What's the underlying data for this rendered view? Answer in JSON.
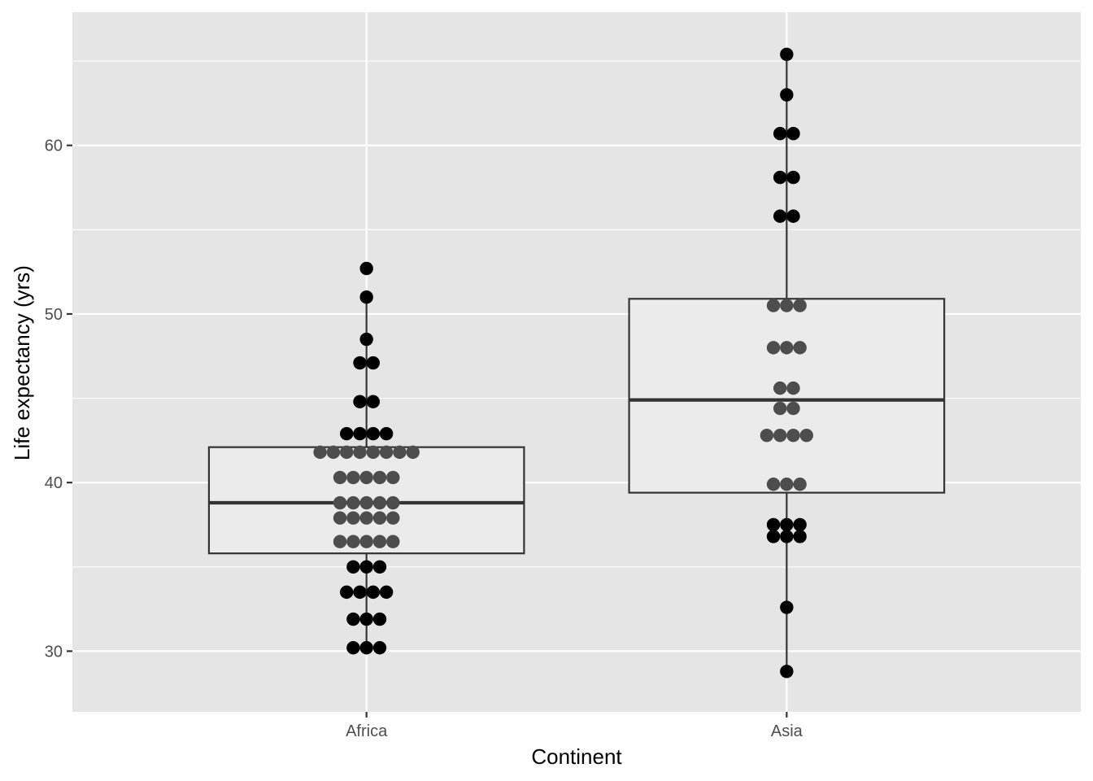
{
  "chart_data": {
    "type": "boxplot-dotplot",
    "xlabel": "Continent",
    "ylabel": "Life expectancy (yrs)",
    "categories": [
      "Africa",
      "Asia"
    ],
    "ylim": [
      26.4,
      67.9
    ],
    "y_ticks": [
      30,
      40,
      50,
      60
    ],
    "y_tick_labels": [
      "30",
      "40",
      "50",
      "60"
    ],
    "grid": true,
    "boxes": [
      {
        "category": "Africa",
        "whisker_low": 30.2,
        "q1": 35.8,
        "median": 38.8,
        "q3": 42.1,
        "whisker_high": 51.0
      },
      {
        "category": "Asia",
        "whisker_low": 28.8,
        "q1": 39.4,
        "median": 44.9,
        "q3": 50.9,
        "whisker_high": 65.4
      }
    ],
    "dot_stacks": [
      {
        "category": "Africa",
        "y": 52.7,
        "count": 1
      },
      {
        "category": "Africa",
        "y": 51.0,
        "count": 1
      },
      {
        "category": "Africa",
        "y": 48.5,
        "count": 1
      },
      {
        "category": "Africa",
        "y": 47.1,
        "count": 2
      },
      {
        "category": "Africa",
        "y": 44.8,
        "count": 2
      },
      {
        "category": "Africa",
        "y": 42.9,
        "count": 4
      },
      {
        "category": "Africa",
        "y": 41.8,
        "count": 8
      },
      {
        "category": "Africa",
        "y": 40.3,
        "count": 5
      },
      {
        "category": "Africa",
        "y": 38.8,
        "count": 5
      },
      {
        "category": "Africa",
        "y": 37.9,
        "count": 5
      },
      {
        "category": "Africa",
        "y": 36.5,
        "count": 5
      },
      {
        "category": "Africa",
        "y": 35.0,
        "count": 3
      },
      {
        "category": "Africa",
        "y": 33.5,
        "count": 4
      },
      {
        "category": "Africa",
        "y": 31.9,
        "count": 3
      },
      {
        "category": "Africa",
        "y": 30.2,
        "count": 3
      },
      {
        "category": "Asia",
        "y": 65.4,
        "count": 1
      },
      {
        "category": "Asia",
        "y": 63.0,
        "count": 1
      },
      {
        "category": "Asia",
        "y": 60.7,
        "count": 2
      },
      {
        "category": "Asia",
        "y": 58.1,
        "count": 2
      },
      {
        "category": "Asia",
        "y": 55.8,
        "count": 2
      },
      {
        "category": "Asia",
        "y": 50.5,
        "count": 3
      },
      {
        "category": "Asia",
        "y": 48.0,
        "count": 3
      },
      {
        "category": "Asia",
        "y": 45.6,
        "count": 2
      },
      {
        "category": "Asia",
        "y": 44.4,
        "count": 2
      },
      {
        "category": "Asia",
        "y": 42.8,
        "count": 4
      },
      {
        "category": "Asia",
        "y": 39.9,
        "count": 3
      },
      {
        "category": "Asia",
        "y": 37.5,
        "count": 3
      },
      {
        "category": "Asia",
        "y": 36.8,
        "count": 3
      },
      {
        "category": "Asia",
        "y": 32.6,
        "count": 1
      },
      {
        "category": "Asia",
        "y": 28.8,
        "count": 1
      }
    ]
  },
  "colors": {
    "panel_background": "#e5e5e5",
    "grid_major": "#ffffff",
    "box_fill": "#ebebeb",
    "box_line": "#333333",
    "dot_outside_box": "#000000",
    "dot_inside_box": "#4d4d4d",
    "tick": "#333333"
  }
}
